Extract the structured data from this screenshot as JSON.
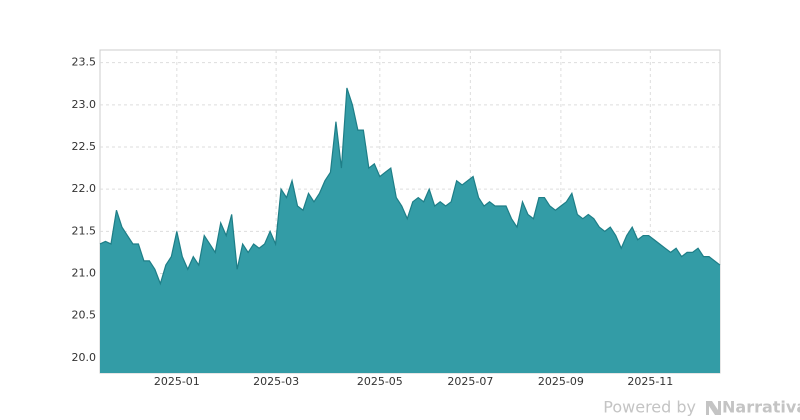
{
  "chart_data": {
    "type": "area",
    "color": "#339ca6",
    "line_color": "#1e7e87",
    "grid": true,
    "values": [
      21.35,
      21.38,
      21.35,
      21.75,
      21.55,
      21.45,
      21.35,
      21.35,
      21.15,
      21.15,
      21.05,
      20.88,
      21.1,
      21.2,
      21.5,
      21.2,
      21.05,
      21.2,
      21.1,
      21.45,
      21.35,
      21.25,
      21.6,
      21.45,
      21.7,
      21.05,
      21.35,
      21.25,
      21.35,
      21.3,
      21.35,
      21.5,
      21.35,
      22.0,
      21.9,
      22.1,
      21.8,
      21.75,
      21.95,
      21.85,
      21.95,
      22.1,
      22.2,
      22.8,
      22.25,
      23.2,
      23.0,
      22.7,
      22.7,
      22.25,
      22.3,
      22.15,
      22.2,
      22.25,
      21.9,
      21.8,
      21.65,
      21.85,
      21.9,
      21.85,
      22.0,
      21.8,
      21.85,
      21.8,
      21.85,
      22.1,
      22.05,
      22.1,
      22.15,
      21.9,
      21.8,
      21.85,
      21.8,
      21.8,
      21.8,
      21.65,
      21.55,
      21.85,
      21.7,
      21.65,
      21.9,
      21.9,
      21.8,
      21.75,
      21.8,
      21.85,
      21.95,
      21.7,
      21.65,
      21.7,
      21.65,
      21.55,
      21.5,
      21.55,
      21.45,
      21.3,
      21.45,
      21.55,
      21.4,
      21.45,
      21.45,
      21.4,
      21.35,
      21.3,
      21.25,
      21.3,
      21.2,
      21.25,
      21.25,
      21.3,
      21.2,
      21.2,
      21.15,
      21.1
    ],
    "ylim": [
      19.82,
      23.65
    ],
    "yticks": [
      {
        "value": 20,
        "label": "20.0"
      },
      20.5,
      {
        "value": 21,
        "label": "21.0"
      },
      21.5,
      {
        "value": 22,
        "label": "22.0"
      },
      22.5,
      {
        "value": 23,
        "label": "23.0"
      },
      23.5
    ],
    "xticks": [
      {
        "value": 14,
        "label": "2025-01"
      },
      {
        "value": 32.1,
        "label": "2025-03"
      },
      {
        "value": 51,
        "label": "2025-05"
      },
      {
        "value": 67.5,
        "label": "2025-07"
      },
      {
        "value": 84,
        "label": "2025-09"
      },
      {
        "value": 100.3,
        "label": "2025-11"
      }
    ]
  },
  "footer": {
    "prefix": "Powered by",
    "brand": "Narrativa"
  }
}
